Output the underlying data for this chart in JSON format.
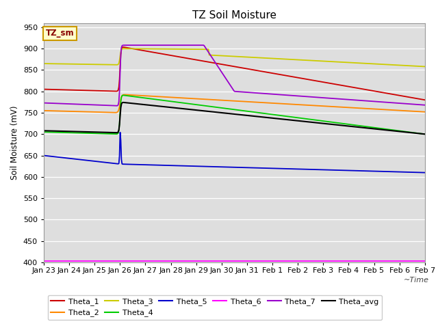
{
  "title": "TZ Soil Moisture",
  "ylabel": "Soil Moisture (mV)",
  "ylim": [
    400,
    960
  ],
  "yticks": [
    400,
    450,
    500,
    550,
    600,
    650,
    700,
    750,
    800,
    850,
    900,
    950
  ],
  "xtick_labels": [
    "Jan 23",
    "Jan 24",
    "Jan 25",
    "Jan 26",
    "Jan 27",
    "Jan 28",
    "Jan 29",
    "Jan 30",
    "Jan 31",
    "Feb 1",
    "Feb 2",
    "Feb 3",
    "Feb 4",
    "Feb 5",
    "Feb 6",
    "Feb 7"
  ],
  "n_days": 15,
  "n_points": 600,
  "spike_day": 3.0,
  "background_color": "#dedede",
  "grid_color": "#ffffff",
  "series": {
    "Theta_1": {
      "color": "#cc0000"
    },
    "Theta_2": {
      "color": "#ff8800"
    },
    "Theta_3": {
      "color": "#cccc00"
    },
    "Theta_4": {
      "color": "#00cc00"
    },
    "Theta_5": {
      "color": "#0000cc"
    },
    "Theta_6": {
      "color": "#ff00ff"
    },
    "Theta_7": {
      "color": "#9900cc"
    },
    "Theta_avg": {
      "color": "#000000"
    }
  },
  "legend_box_color": "#ffffcc",
  "legend_box_edge": "#cc9900",
  "legend_box_text": "#880000"
}
